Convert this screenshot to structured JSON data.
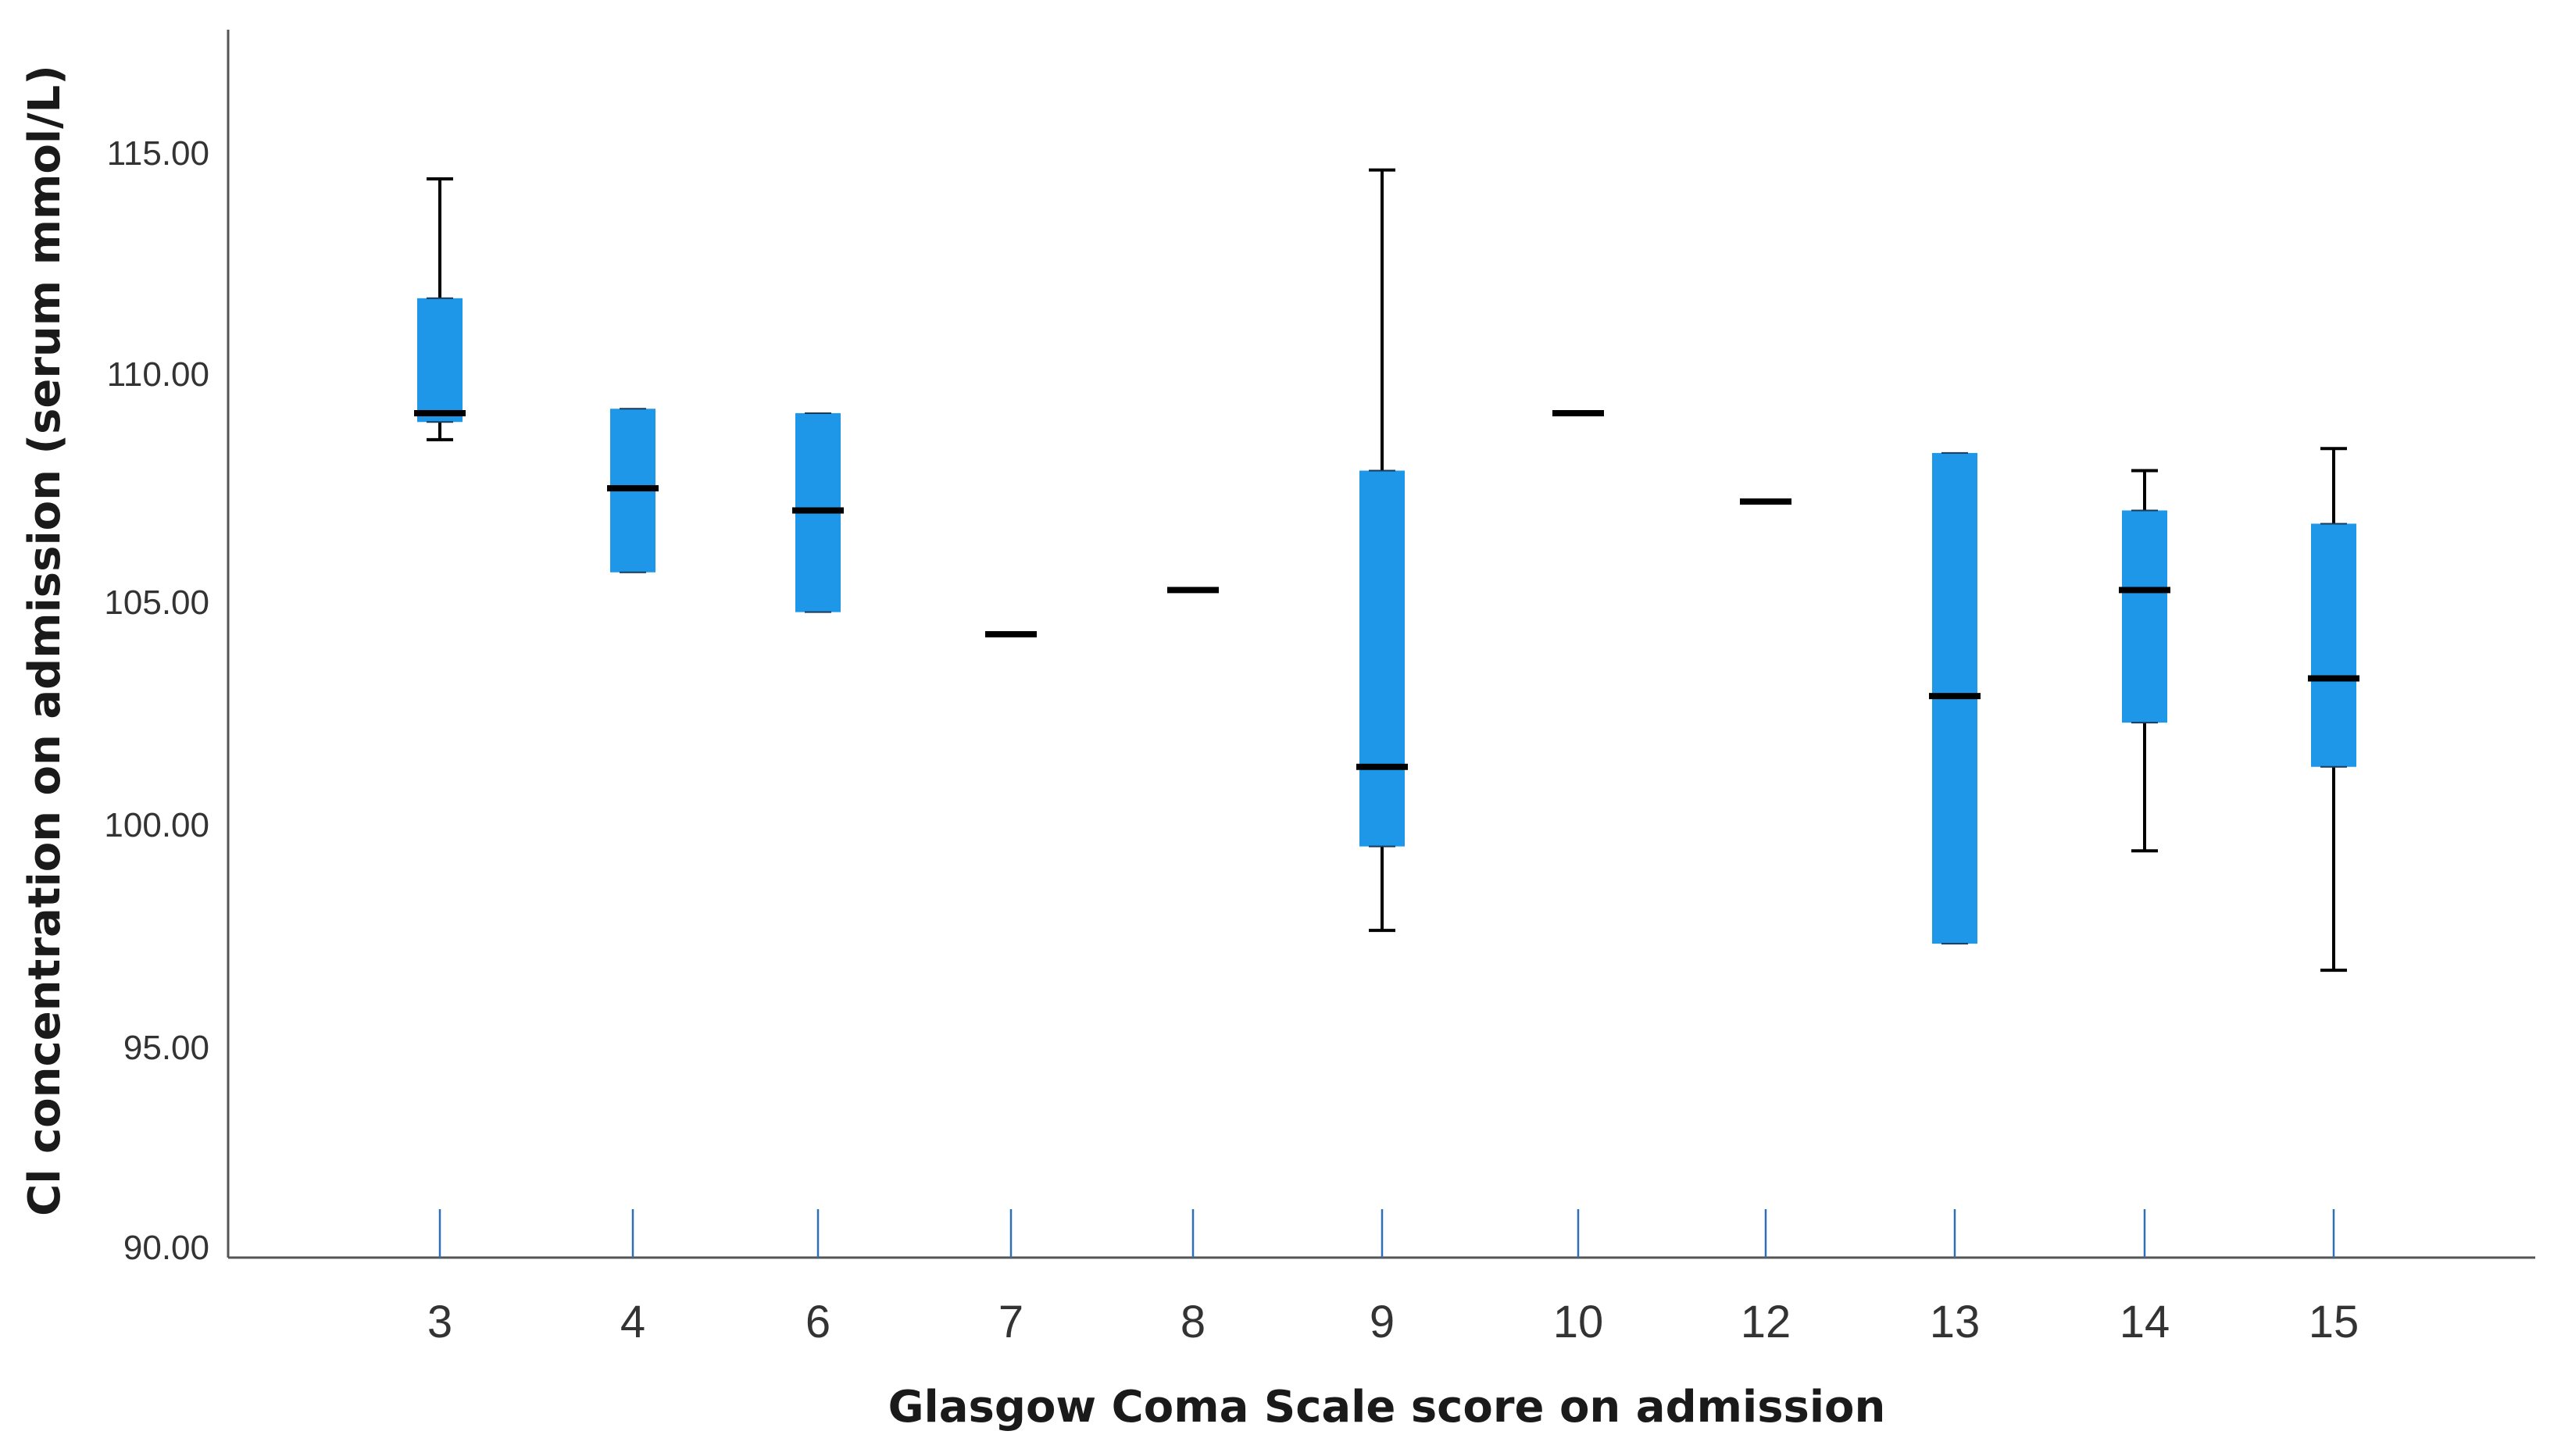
{
  "chart_data": {
    "type": "boxplot",
    "title": "",
    "xlabel": "Glasgow Coma Scale score on admission",
    "ylabel": "Cl concentration on admission (serum mmol/L)",
    "ylim": [
      90,
      117.5
    ],
    "yticks": [
      "90.00",
      "95.00",
      "100.00",
      "105.00",
      "110.00",
      "115.00"
    ],
    "categories": [
      "3",
      "4",
      "6",
      "7",
      "8",
      "9",
      "10",
      "12",
      "13",
      "14",
      "15"
    ],
    "series": [
      {
        "box_color": "#1f97e8",
        "boxes": [
          {
            "category": "3",
            "min": 108.5,
            "q1": 108.9,
            "median": 109.1,
            "q3": 111.7,
            "max": 114.4
          },
          {
            "category": "4",
            "min": 105.5,
            "q1": 105.5,
            "median": 107.4,
            "q3": 109.2,
            "max": 109.2
          },
          {
            "category": "6",
            "min": 104.6,
            "q1": 104.6,
            "median": 106.9,
            "q3": 109.1,
            "max": 109.1
          },
          {
            "category": "7",
            "min": 104.1,
            "q1": 104.1,
            "median": 104.1,
            "q3": 104.1,
            "max": 104.1
          },
          {
            "category": "8",
            "min": 105.1,
            "q1": 105.1,
            "median": 105.1,
            "q3": 105.1,
            "max": 105.1
          },
          {
            "category": "9",
            "min": 97.4,
            "q1": 99.3,
            "median": 101.1,
            "q3": 107.8,
            "max": 114.6
          },
          {
            "category": "10",
            "min": 109.1,
            "q1": 109.1,
            "median": 109.1,
            "q3": 109.1,
            "max": 109.1
          },
          {
            "category": "12",
            "min": 107.1,
            "q1": 107.1,
            "median": 107.1,
            "q3": 107.1,
            "max": 107.1
          },
          {
            "category": "13",
            "min": 97.1,
            "q1": 97.1,
            "median": 102.7,
            "q3": 108.2,
            "max": 108.2
          },
          {
            "category": "14",
            "min": 99.2,
            "q1": 102.1,
            "median": 105.1,
            "q3": 106.9,
            "max": 107.8
          },
          {
            "category": "15",
            "min": 96.5,
            "q1": 101.1,
            "median": 103.1,
            "q3": 106.6,
            "max": 108.3
          }
        ]
      }
    ],
    "grid": false,
    "legend": "none"
  }
}
